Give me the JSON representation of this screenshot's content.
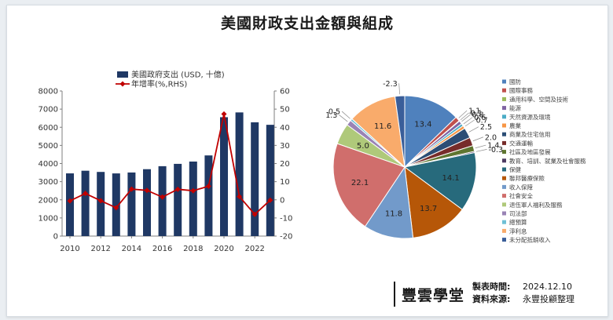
{
  "title": "美國財政支出金額與組成",
  "chart_data": [
    {
      "type": "bar",
      "x": [
        2010,
        2011,
        2012,
        2013,
        2014,
        2015,
        2016,
        2017,
        2018,
        2019,
        2020,
        2021,
        2022,
        2023
      ],
      "xticks": [
        "2010",
        "2012",
        "2014",
        "2016",
        "2018",
        "2020",
        "2022"
      ],
      "series": [
        {
          "name": "美國政府支出 (USD, 十億)",
          "type": "bar",
          "axis": "left",
          "color": "#1f3864",
          "values": [
            3457,
            3603,
            3537,
            3455,
            3506,
            3688,
            3853,
            3982,
            4109,
            4447,
            6554,
            6818,
            6273,
            6135
          ]
        },
        {
          "name": "年增率(%,RHS)",
          "type": "line",
          "axis": "right",
          "color": "#c00000",
          "values": [
            -0.6,
            3.5,
            -0.5,
            -4.4,
            5.9,
            5.2,
            1.5,
            5.8,
            5.0,
            7.5,
            47.3,
            1.8,
            -8.0,
            -0.2
          ]
        }
      ],
      "ylim": [
        0,
        8000
      ],
      "yticks": [
        "0",
        "1000",
        "2000",
        "3000",
        "4000",
        "5000",
        "6000",
        "7000",
        "8000"
      ],
      "y2lim": [
        -20,
        60
      ],
      "y2ticks": [
        "-20",
        "-10",
        "0",
        "10",
        "20",
        "30",
        "40",
        "50",
        "60"
      ],
      "legend": "top-left"
    },
    {
      "type": "pie",
      "slices": [
        {
          "label": "國防",
          "value": 13.4,
          "color": "#4f81bd"
        },
        {
          "label": "國際事務",
          "value": 1.1,
          "color": "#c0504d"
        },
        {
          "label": "通用科學、空間及技術",
          "value": 0.1,
          "color": "#9bbb59"
        },
        {
          "label": "能源",
          "value": 0.8,
          "color": "#8064a2"
        },
        {
          "label": "天然資源及環境",
          "value": 0.6,
          "color": "#4bacc6"
        },
        {
          "label": "農業",
          "value": 0.7,
          "color": "#f79646"
        },
        {
          "label": "商業及住宅信用",
          "value": 2.5,
          "color": "#2c4d75"
        },
        {
          "label": "交通運輸",
          "value": 2.0,
          "color": "#772c2a"
        },
        {
          "label": "社區及地區發展",
          "value": 1.4,
          "color": "#5f7530"
        },
        {
          "label": "教育、培訓、就業及社會服務",
          "value": -0.3,
          "color": "#4d3b62"
        },
        {
          "label": "保健",
          "value": 14.1,
          "color": "#276a7c"
        },
        {
          "label": "聯邦醫療保險",
          "value": 13.7,
          "color": "#b65708"
        },
        {
          "label": "收入保障",
          "value": 11.8,
          "color": "#729aca"
        },
        {
          "label": "社會安全",
          "value": 22.1,
          "color": "#d06e6c"
        },
        {
          "label": "退伍軍人福利及服務",
          "value": 5.0,
          "color": "#afc97a"
        },
        {
          "label": "司法部",
          "value": 1.3,
          "color": "#9983b5"
        },
        {
          "label": "總預算",
          "value": 0.5,
          "color": "#6fc0d6"
        },
        {
          "label": "淨利息",
          "value": 11.6,
          "color": "#f9ab6b"
        },
        {
          "label": "未分配抵銷收入",
          "value": -2.3,
          "color": "#3a5e99"
        }
      ],
      "data_labels": [
        "13.4",
        "1.1",
        "0.1",
        "0.8",
        "0.6",
        "0.7",
        "2.5",
        "2.0",
        "1.4",
        "-0.3",
        "14.1",
        "13.7",
        "11.8",
        "22.1",
        "5.0",
        "1.3",
        "0.5",
        "11.6",
        "-2.3"
      ],
      "legend": "right"
    }
  ],
  "brand": {
    "logo": "豐雲學堂",
    "made_label": "製表時間:",
    "made_value": "2024.12.10",
    "source_label": "資料來源:",
    "source_value": "永豐投顧整理"
  }
}
